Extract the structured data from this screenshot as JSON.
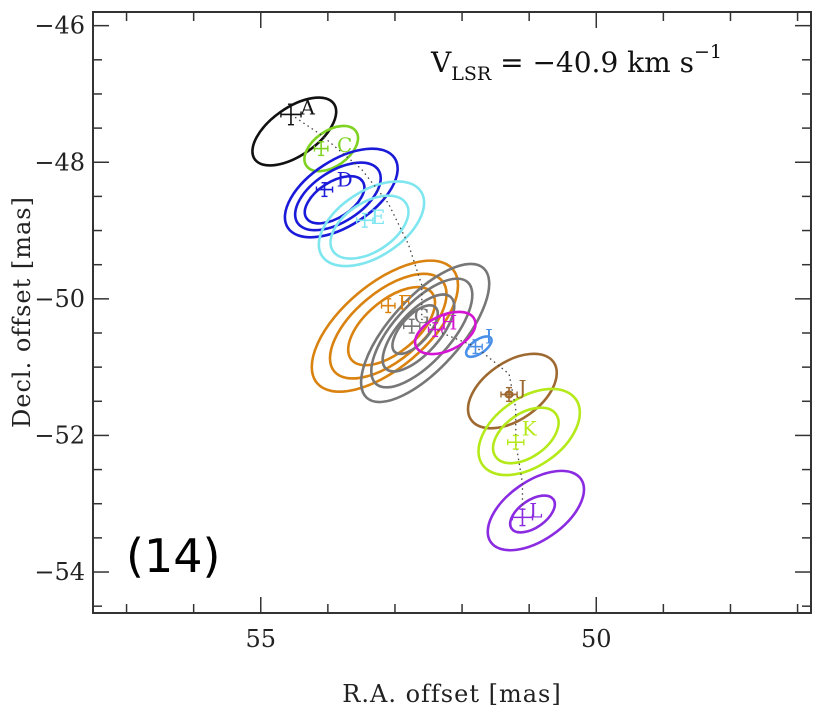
{
  "chart_data": {
    "type": "scatter",
    "title": "",
    "panel_label": "(14)",
    "velocity_annotation": {
      "prefix": "V",
      "subscript": "LSR",
      "text": " = −40.9 km s",
      "superscript": "−1"
    },
    "xlabel": "R.A. offset [mas]",
    "ylabel": "Decl. offset [mas]",
    "xlim": [
      57.5,
      46.8
    ],
    "ylim": [
      -54.6,
      -45.8
    ],
    "x_ticks": [
      {
        "value": 55,
        "label": "55"
      },
      {
        "value": 50,
        "label": "50"
      }
    ],
    "y_ticks": [
      {
        "value": -46,
        "label": "−46"
      },
      {
        "value": -48,
        "label": "−48"
      },
      {
        "value": -50,
        "label": "−50"
      },
      {
        "value": -52,
        "label": "−52"
      },
      {
        "value": -54,
        "label": "−54"
      }
    ],
    "path": [
      [
        54.55,
        -47.3
      ],
      [
        54.1,
        -47.6
      ],
      [
        53.5,
        -48.1
      ],
      [
        53.1,
        -48.6
      ],
      [
        52.8,
        -49.2
      ],
      [
        52.6,
        -49.8
      ],
      [
        52.6,
        -50.3
      ],
      [
        52.3,
        -50.5
      ],
      [
        51.8,
        -50.7
      ],
      [
        51.3,
        -51.1
      ],
      [
        51.2,
        -51.6
      ],
      [
        51.2,
        -52.1
      ],
      [
        51.1,
        -52.7
      ],
      [
        51.1,
        -53.2
      ]
    ],
    "components": [
      {
        "name": "A",
        "color": "#111111",
        "x": 54.55,
        "y": -47.3,
        "label_x": 54.3,
        "label_y": -47.2,
        "xerr": 0.15,
        "yerr": 0.15,
        "contours": [
          {
            "cx": 54.5,
            "cy": -47.55,
            "rx": 0.72,
            "ry": 0.35,
            "angle": 35
          }
        ]
      },
      {
        "name": "C",
        "color": "#7ed321",
        "x": 54.1,
        "y": -47.8,
        "label_x": 53.75,
        "label_y": -47.75,
        "xerr": 0.1,
        "yerr": 0.1,
        "contours": [
          {
            "cx": 53.95,
            "cy": -47.8,
            "rx": 0.45,
            "ry": 0.26,
            "angle": 35
          }
        ]
      },
      {
        "name": "D",
        "color": "#1a1ad9",
        "x": 54.05,
        "y": -48.4,
        "label_x": 53.75,
        "label_y": -48.25,
        "xerr": 0.12,
        "yerr": 0.1,
        "contours": [
          {
            "cx": 53.8,
            "cy": -48.45,
            "rx": 0.95,
            "ry": 0.48,
            "angle": 33
          },
          {
            "cx": 53.85,
            "cy": -48.5,
            "rx": 0.72,
            "ry": 0.37,
            "angle": 33
          },
          {
            "cx": 53.9,
            "cy": -48.55,
            "rx": 0.5,
            "ry": 0.26,
            "angle": 33
          }
        ]
      },
      {
        "name": "E",
        "color": "#7fe6f0",
        "x": 53.45,
        "y": -48.85,
        "label_x": 53.25,
        "label_y": -48.8,
        "xerr": 0.12,
        "yerr": 0.1,
        "contours": [
          {
            "cx": 53.35,
            "cy": -48.9,
            "rx": 0.88,
            "ry": 0.48,
            "angle": 33
          },
          {
            "cx": 53.38,
            "cy": -48.95,
            "rx": 0.65,
            "ry": 0.36,
            "angle": 33
          }
        ]
      },
      {
        "name": "F",
        "color": "#d9820f",
        "x": 53.1,
        "y": -50.1,
        "label_x": 52.85,
        "label_y": -50.05,
        "xerr": 0.1,
        "yerr": 0.1,
        "contours": [
          {
            "cx": 53.15,
            "cy": -50.4,
            "rx": 1.32,
            "ry": 0.62,
            "angle": 40
          },
          {
            "cx": 53.1,
            "cy": -50.4,
            "rx": 1.05,
            "ry": 0.5,
            "angle": 40
          },
          {
            "cx": 53.05,
            "cy": -50.4,
            "rx": 0.78,
            "ry": 0.38,
            "angle": 40
          }
        ]
      },
      {
        "name": "G",
        "color": "#777777",
        "x": 52.75,
        "y": -50.4,
        "label_x": 52.6,
        "label_y": -50.25,
        "xerr": 0.12,
        "yerr": 0.1,
        "contours": [
          {
            "cx": 52.55,
            "cy": -50.5,
            "rx": 1.3,
            "ry": 0.52,
            "angle": 48
          },
          {
            "cx": 52.6,
            "cy": -50.5,
            "rx": 1.02,
            "ry": 0.42,
            "angle": 48
          },
          {
            "cx": 52.65,
            "cy": -50.5,
            "rx": 0.72,
            "ry": 0.3,
            "angle": 48
          },
          {
            "cx": 52.7,
            "cy": -50.45,
            "rx": 0.45,
            "ry": 0.2,
            "angle": 48
          }
        ]
      },
      {
        "name": "H",
        "color": "#d416d4",
        "x": 52.4,
        "y": -50.45,
        "label_x": 52.2,
        "label_y": -50.35,
        "xerr": 0.1,
        "yerr": 0.1,
        "contours": [
          {
            "cx": 52.25,
            "cy": -50.5,
            "rx": 0.48,
            "ry": 0.26,
            "angle": 25
          }
        ]
      },
      {
        "name": "I",
        "color": "#4a8fe8",
        "x": 51.8,
        "y": -50.7,
        "label_x": 51.6,
        "label_y": -50.55,
        "xerr": 0.1,
        "yerr": 0.1,
        "contours": [
          {
            "cx": 51.75,
            "cy": -50.7,
            "rx": 0.22,
            "ry": 0.1,
            "angle": 35
          }
        ]
      },
      {
        "name": "J",
        "color": "#9e6930",
        "x": 51.3,
        "y": -51.4,
        "label_x": 51.1,
        "label_y": -51.3,
        "xerr": 0.12,
        "yerr": 0.1,
        "contours": [
          {
            "cx": 51.25,
            "cy": -51.35,
            "rx": 0.75,
            "ry": 0.42,
            "angle": 35
          },
          {
            "cx": 51.3,
            "cy": -51.4,
            "rx": 0.05,
            "ry": 0.04,
            "angle": 0
          }
        ]
      },
      {
        "name": "K",
        "color": "#b5ea1a",
        "x": 51.2,
        "y": -52.1,
        "label_x": 51.0,
        "label_y": -51.9,
        "xerr": 0.12,
        "yerr": 0.1,
        "contours": [
          {
            "cx": 51.0,
            "cy": -51.95,
            "rx": 0.85,
            "ry": 0.5,
            "angle": 35
          },
          {
            "cx": 51.05,
            "cy": -52.0,
            "rx": 0.55,
            "ry": 0.32,
            "angle": 35
          }
        ]
      },
      {
        "name": "L",
        "color": "#8a2be2",
        "x": 51.1,
        "y": -53.2,
        "label_x": 50.9,
        "label_y": -53.1,
        "xerr": 0.15,
        "yerr": 0.12,
        "contours": [
          {
            "cx": 50.9,
            "cy": -53.1,
            "rx": 0.82,
            "ry": 0.43,
            "angle": 35
          },
          {
            "cx": 50.95,
            "cy": -53.15,
            "rx": 0.38,
            "ry": 0.2,
            "angle": 35
          }
        ]
      }
    ]
  }
}
